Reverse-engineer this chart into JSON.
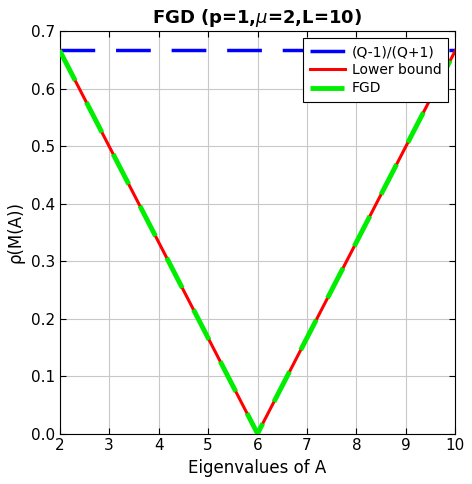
{
  "xlabel": "Eigenvalues of A",
  "ylabel": "ρ(M(A))",
  "mu": 2,
  "L": 10,
  "xlim": [
    2,
    10
  ],
  "ylim": [
    0,
    0.7
  ],
  "xticks": [
    2,
    3,
    4,
    5,
    6,
    7,
    8,
    9,
    10
  ],
  "yticks": [
    0.0,
    0.1,
    0.2,
    0.3,
    0.4,
    0.5,
    0.6,
    0.7
  ],
  "lower_bound_color": "#ff0000",
  "fgd_color": "#00ee00",
  "horizontal_color": "#0000ff",
  "lower_bound_lw": 2.2,
  "fgd_lw": 3.5,
  "horizontal_lw": 2.5,
  "legend_labels": [
    "Lower bound",
    "FGD",
    "(Q-1)/(Q+1)"
  ],
  "background_color": "#ffffff",
  "grid_color": "#c8c8c8",
  "tick_fontsize": 11,
  "label_fontsize": 12,
  "title_fontsize": 13
}
